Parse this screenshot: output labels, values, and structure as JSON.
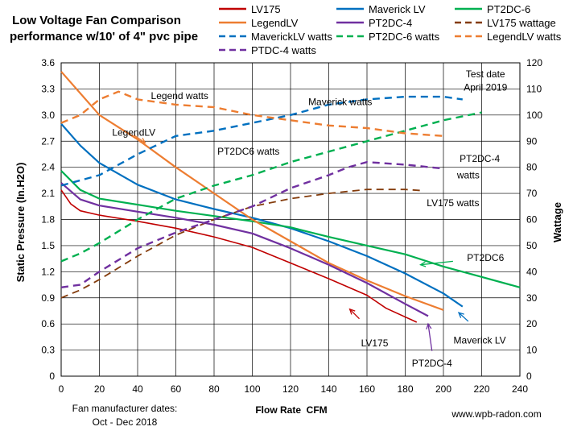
{
  "chart_data": {
    "type": "line",
    "title": [
      "Low Voltage Fan Comparison",
      "performance w/10' of 4\" pvc pipe"
    ],
    "xlabel": "Flow Rate  CFM",
    "ylabel": "Static Pressure (In.H2O)",
    "y2label": "Wattage",
    "xlim": [
      0,
      240
    ],
    "ylim": [
      0,
      3.6
    ],
    "y2lim": [
      0,
      120
    ],
    "x_ticks": [
      "0",
      "20",
      "40",
      "60",
      "80",
      "100",
      "120",
      "140",
      "160",
      "180",
      "200",
      "220",
      "240"
    ],
    "y_ticks": [
      "0",
      "0.3",
      "0.6",
      "0.9",
      "1.2",
      "1.5",
      "1.8",
      "2.1",
      "2.4",
      "2.7",
      "3.0",
      "3.3",
      "3.6"
    ],
    "y2_ticks": [
      "0",
      "10",
      "20",
      "30",
      "40",
      "50",
      "60",
      "70",
      "80",
      "90",
      "100",
      "110",
      "120"
    ],
    "grid": true,
    "legend_position": "top-right",
    "legend": [
      {
        "name": "LV175",
        "color": "#c00000",
        "dash": "solid"
      },
      {
        "name": "Maverick LV",
        "color": "#0070c0",
        "dash": "solid"
      },
      {
        "name": "PT2DC-6",
        "color": "#00b050",
        "dash": "solid"
      },
      {
        "name": "LegendLV",
        "color": "#ed7d31",
        "dash": "solid"
      },
      {
        "name": "PT2DC-4",
        "color": "#7030a0",
        "dash": "solid"
      },
      {
        "name": "LV175 wattage",
        "color": "#843c0c",
        "dash": "dashed"
      },
      {
        "name": "MaverickLV watts",
        "color": "#0070c0",
        "dash": "dashed"
      },
      {
        "name": "PT2DC-6 watts",
        "color": "#00b050",
        "dash": "dashed"
      },
      {
        "name": "LegendLV watts",
        "color": "#ed7d31",
        "dash": "dashed"
      },
      {
        "name": "PTDC-4 watts",
        "color": "#7030a0",
        "dash": "dashed"
      }
    ],
    "series": [
      {
        "name": "LV175",
        "axis": "y",
        "color": "#c00000",
        "dash": "solid",
        "width": 1.6,
        "x": [
          0,
          5,
          10,
          20,
          40,
          60,
          80,
          100,
          120,
          140,
          160,
          170,
          186
        ],
        "y": [
          2.14,
          1.98,
          1.9,
          1.85,
          1.78,
          1.7,
          1.6,
          1.48,
          1.3,
          1.12,
          0.93,
          0.78,
          0.62
        ]
      },
      {
        "name": "Maverick LV",
        "axis": "y",
        "color": "#0070c0",
        "dash": "solid",
        "width": 2.2,
        "x": [
          0,
          10,
          20,
          40,
          60,
          80,
          100,
          120,
          140,
          160,
          180,
          200,
          210
        ],
        "y": [
          2.9,
          2.65,
          2.45,
          2.2,
          2.03,
          1.92,
          1.82,
          1.7,
          1.55,
          1.38,
          1.18,
          0.95,
          0.8
        ]
      },
      {
        "name": "PT2DC-6",
        "axis": "y",
        "color": "#00b050",
        "dash": "solid",
        "width": 2.2,
        "x": [
          0,
          10,
          20,
          40,
          60,
          80,
          100,
          120,
          140,
          160,
          180,
          200,
          220,
          240
        ],
        "y": [
          2.36,
          2.14,
          2.04,
          1.97,
          1.9,
          1.84,
          1.78,
          1.71,
          1.6,
          1.5,
          1.4,
          1.26,
          1.14,
          1.02
        ]
      },
      {
        "name": "LegendLV",
        "axis": "y",
        "color": "#ed7d31",
        "dash": "solid",
        "width": 2.2,
        "x": [
          0,
          20,
          40,
          60,
          80,
          100,
          120,
          140,
          160,
          180,
          200
        ],
        "y": [
          3.5,
          3.0,
          2.72,
          2.4,
          2.1,
          1.8,
          1.55,
          1.3,
          1.1,
          0.92,
          0.76
        ]
      },
      {
        "name": "PT2DC-4",
        "axis": "y",
        "color": "#7030a0",
        "dash": "solid",
        "width": 2.2,
        "x": [
          0,
          10,
          20,
          40,
          60,
          80,
          100,
          120,
          140,
          160,
          180,
          192
        ],
        "y": [
          2.22,
          2.03,
          1.96,
          1.89,
          1.82,
          1.74,
          1.64,
          1.47,
          1.28,
          1.07,
          0.83,
          0.69
        ]
      },
      {
        "name": "LV175 wattage",
        "axis": "y2",
        "color": "#843c0c",
        "dash": "dashed",
        "width": 1.8,
        "x": [
          0,
          10,
          20,
          40,
          60,
          80,
          100,
          120,
          140,
          160,
          180,
          190
        ],
        "y": [
          30,
          33,
          37,
          46,
          54,
          60,
          65,
          68,
          70,
          71.5,
          71.5,
          71
        ]
      },
      {
        "name": "MaverickLV watts",
        "axis": "y2",
        "color": "#0070c0",
        "dash": "dashed",
        "width": 2.4,
        "x": [
          0,
          20,
          40,
          60,
          80,
          100,
          120,
          140,
          160,
          180,
          200,
          210
        ],
        "y": [
          73,
          77,
          85,
          92,
          94,
          97,
          100,
          104,
          106,
          107,
          107,
          106
        ]
      },
      {
        "name": "PT2DC-6 watts",
        "axis": "y2",
        "color": "#00b050",
        "dash": "dashed",
        "width": 2.4,
        "x": [
          0,
          10,
          20,
          40,
          60,
          80,
          100,
          120,
          140,
          160,
          180,
          200,
          220
        ],
        "y": [
          44,
          47,
          51,
          60,
          68,
          73,
          77,
          82,
          86,
          90,
          94,
          98,
          101
        ]
      },
      {
        "name": "LegendLV watts",
        "axis": "y2",
        "color": "#ed7d31",
        "dash": "dashed",
        "width": 2.4,
        "x": [
          0,
          10,
          20,
          30,
          40,
          60,
          80,
          100,
          120,
          140,
          160,
          180,
          200
        ],
        "y": [
          97,
          100,
          106,
          109,
          106,
          104,
          103,
          100,
          98,
          96,
          95,
          93,
          92
        ]
      },
      {
        "name": "PTDC-4 watts",
        "axis": "y2",
        "color": "#7030a0",
        "dash": "dashed",
        "width": 2.4,
        "x": [
          0,
          10,
          20,
          40,
          60,
          80,
          100,
          120,
          140,
          150,
          160,
          180,
          200
        ],
        "y": [
          34,
          35,
          40,
          49,
          55,
          60,
          65,
          72,
          77,
          80,
          82,
          81,
          79.5
        ]
      }
    ],
    "annotations": [
      {
        "name": "legend-watts-label",
        "text": "Legend watts",
        "x": 62,
        "y": 3.22
      },
      {
        "name": "maverick-watts-label",
        "text": "Maverick watts",
        "x": 146,
        "y": 3.15
      },
      {
        "name": "test-date-label",
        "text": "Test date",
        "x": 222,
        "y": 3.47
      },
      {
        "name": "april-label",
        "text": "April 2019",
        "x": 222,
        "y": 3.32
      },
      {
        "name": "legendlv-label",
        "text": "LegendLV",
        "x": 38,
        "y": 2.8
      },
      {
        "name": "pt2dc6-watts-label",
        "text": "PT2DC6 watts",
        "x": 98,
        "y": 2.58
      },
      {
        "name": "pt2dc4-watts-label",
        "text": "PT2DC-4",
        "x": 219,
        "y": 2.5
      },
      {
        "name": "pt2dc4-watts-label-2",
        "text": "watts",
        "x": 213,
        "y": 2.31
      },
      {
        "name": "lv175-watts-label",
        "text": "LV175 watts",
        "x": 205,
        "y": 1.99
      },
      {
        "name": "pt2dc6-label",
        "text": "PT2DC6",
        "x": 222,
        "y": 1.36
      },
      {
        "name": "lv175-label",
        "text": "LV175",
        "x": 164,
        "y": 0.38
      },
      {
        "name": "pt2dc4-label",
        "text": "PT2DC-4",
        "x": 194,
        "y": 0.15
      },
      {
        "name": "maverick-lv-label",
        "text": "Maverick LV",
        "x": 219,
        "y": 0.41
      }
    ],
    "arrows": [
      {
        "name": "legendlv-arrow",
        "color": "#ed7d31",
        "from": [
          38,
          2.77
        ],
        "to": [
          44,
          2.68
        ]
      },
      {
        "name": "pt2dc6-arrow",
        "color": "#00b050",
        "from": [
          205,
          1.32
        ],
        "to": [
          188,
          1.28
        ]
      },
      {
        "name": "lv175-arrow",
        "color": "#c00000",
        "from": [
          156,
          0.66
        ],
        "to": [
          151,
          0.77
        ]
      },
      {
        "name": "pt2dc4-arrow",
        "color": "#7030a0",
        "from": [
          194,
          0.29
        ],
        "to": [
          192,
          0.6
        ]
      },
      {
        "name": "maverick-lv-arrow",
        "color": "#0070c0",
        "from": [
          213,
          0.63
        ],
        "to": [
          208,
          0.73
        ]
      }
    ]
  },
  "footer": {
    "manufacturer_line1": "Fan manufacturer dates:",
    "manufacturer_line2": "Oct - Dec 2018",
    "website": "www.wpb-radon.com"
  }
}
